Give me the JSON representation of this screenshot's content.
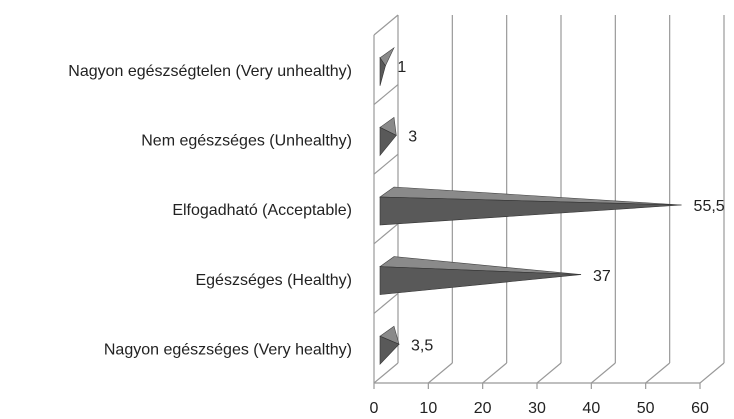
{
  "chart_data": {
    "type": "bar",
    "orientation": "horizontal",
    "categories": [
      "Nagyon egészségtelen (Very unhealthy)",
      "Nem egészséges (Unhealthy)",
      "Elfogadható (Acceptable)",
      "Egészséges (Healthy)",
      "Nagyon egészséges  (Very healthy)"
    ],
    "values": [
      1,
      3,
      55.5,
      37,
      3.5
    ],
    "value_labels": [
      "1",
      "3",
      "55,5",
      "37",
      "3,5"
    ],
    "color": "#595959",
    "xlim": [
      0,
      60
    ],
    "xticks": [
      0,
      10,
      20,
      30,
      40,
      50,
      60
    ],
    "grid": true
  }
}
